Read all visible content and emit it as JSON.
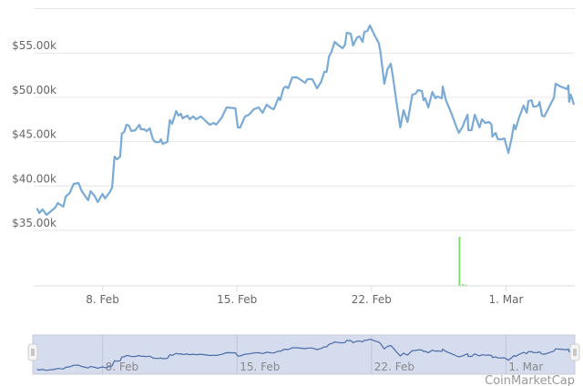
{
  "chart_data": {
    "type": "line",
    "title": "",
    "xlabel": "",
    "ylabel": "",
    "xlim": [
      "2021-02-04T10",
      "2021-03-04T14"
    ],
    "ylim": [
      29000,
      60000
    ],
    "grid": true,
    "legend": "none",
    "y_ticks": [
      {
        "value": 35000,
        "label": "$35.00k"
      },
      {
        "value": 40000,
        "label": "$40.00k"
      },
      {
        "value": 45000,
        "label": "$45.00k"
      },
      {
        "value": 50000,
        "label": "$50.00k"
      },
      {
        "value": 55000,
        "label": "$55.00k"
      }
    ],
    "x_ticks": [
      {
        "value": "2021-02-08T00",
        "label": "8. Feb"
      },
      {
        "value": "2021-02-15T00",
        "label": "15. Feb"
      },
      {
        "value": "2021-02-22T00",
        "label": "22. Feb"
      },
      {
        "value": "2021-03-01T00",
        "label": "1. Mar"
      }
    ],
    "colors": {
      "price": "#7aaad6",
      "volume": "#7ee06a",
      "navigator_fill": "#d5dcee",
      "navigator_line": "#4a6aa8"
    },
    "price": [
      [
        "2021-02-04T14",
        37500
      ],
      [
        "2021-02-04T17",
        36950
      ],
      [
        "2021-02-04T21",
        37360
      ],
      [
        "2021-02-05T02",
        36750
      ],
      [
        "2021-02-05T13",
        37570
      ],
      [
        "2021-02-05T16",
        38080
      ],
      [
        "2021-02-05T23",
        37670
      ],
      [
        "2021-02-06T02",
        38800
      ],
      [
        "2021-02-06T07",
        39210
      ],
      [
        "2021-02-06T12",
        40240
      ],
      [
        "2021-02-06T18",
        40340
      ],
      [
        "2021-02-06T22",
        39420
      ],
      [
        "2021-02-07T06",
        38390
      ],
      [
        "2021-02-07T09",
        39420
      ],
      [
        "2021-02-07T14",
        38900
      ],
      [
        "2021-02-07T18",
        38180
      ],
      [
        "2021-02-08T00",
        39110
      ],
      [
        "2021-02-08T03",
        38590
      ],
      [
        "2021-02-08T09",
        39310
      ],
      [
        "2021-02-08T12",
        39830
      ],
      [
        "2021-02-08T15",
        43320
      ],
      [
        "2021-02-08T18",
        43010
      ],
      [
        "2021-02-08T22",
        43320
      ],
      [
        "2021-02-09T00",
        45880
      ],
      [
        "2021-02-09T03",
        46090
      ],
      [
        "2021-02-09T06",
        46910
      ],
      [
        "2021-02-09T09",
        46810
      ],
      [
        "2021-02-09T12",
        46190
      ],
      [
        "2021-02-09T17",
        46290
      ],
      [
        "2021-02-09T22",
        46910
      ],
      [
        "2021-02-10T00",
        46400
      ],
      [
        "2021-02-10T04",
        46400
      ],
      [
        "2021-02-10T07",
        46190
      ],
      [
        "2021-02-10T11",
        46500
      ],
      [
        "2021-02-10T15",
        45270
      ],
      [
        "2021-02-10T18",
        44960
      ],
      [
        "2021-02-10T23",
        44960
      ],
      [
        "2021-02-11T01",
        45270
      ],
      [
        "2021-02-11T03",
        44750
      ],
      [
        "2021-02-11T09",
        44960
      ],
      [
        "2021-02-11T12",
        47420
      ],
      [
        "2021-02-11T15",
        47010
      ],
      [
        "2021-02-11T20",
        48450
      ],
      [
        "2021-02-11T23",
        47940
      ],
      [
        "2021-02-12T02",
        48140
      ],
      [
        "2021-02-12T04",
        47630
      ],
      [
        "2021-02-12T10",
        47940
      ],
      [
        "2021-02-12T13",
        47530
      ],
      [
        "2021-02-12T17",
        47840
      ],
      [
        "2021-02-12T21",
        47530
      ],
      [
        "2021-02-13T03",
        47840
      ],
      [
        "2021-02-13T09",
        47320
      ],
      [
        "2021-02-13T14",
        46910
      ],
      [
        "2021-02-13T19",
        47120
      ],
      [
        "2021-02-13T22",
        46910
      ],
      [
        "2021-02-14T05",
        47730
      ],
      [
        "2021-02-14T11",
        48860
      ],
      [
        "2021-02-14T22",
        48760
      ],
      [
        "2021-02-15T01",
        46600
      ],
      [
        "2021-02-15T04",
        46600
      ],
      [
        "2021-02-15T10",
        47840
      ],
      [
        "2021-02-15T15",
        48040
      ],
      [
        "2021-02-15T21",
        48660
      ],
      [
        "2021-02-16T03",
        48860
      ],
      [
        "2021-02-16T08",
        48250
      ],
      [
        "2021-02-16T13",
        49170
      ],
      [
        "2021-02-16T19",
        48760
      ],
      [
        "2021-02-16T22",
        48660
      ],
      [
        "2021-02-17T04",
        49990
      ],
      [
        "2021-02-17T06",
        49680
      ],
      [
        "2021-02-17T10",
        51020
      ],
      [
        "2021-02-17T13",
        51220
      ],
      [
        "2021-02-17T16",
        51020
      ],
      [
        "2021-02-17T21",
        52250
      ],
      [
        "2021-02-18T03",
        52250
      ],
      [
        "2021-02-18T08",
        51940
      ],
      [
        "2021-02-18T13",
        51630
      ],
      [
        "2021-02-18T16",
        52040
      ],
      [
        "2021-02-18T22",
        52040
      ],
      [
        "2021-02-19T04",
        51020
      ],
      [
        "2021-02-19T09",
        51740
      ],
      [
        "2021-02-19T13",
        52870
      ],
      [
        "2021-02-19T16",
        52870
      ],
      [
        "2021-02-19T19",
        54610
      ],
      [
        "2021-02-19T22",
        55130
      ],
      [
        "2021-02-20T02",
        56250
      ],
      [
        "2021-02-20T07",
        55840
      ],
      [
        "2021-02-20T12",
        55540
      ],
      [
        "2021-02-20T15",
        55950
      ],
      [
        "2021-02-20T17",
        57280
      ],
      [
        "2021-02-20T22",
        57180
      ],
      [
        "2021-02-21T01",
        55840
      ],
      [
        "2021-02-21T06",
        56770
      ],
      [
        "2021-02-21T09",
        56870
      ],
      [
        "2021-02-21T13",
        56250
      ],
      [
        "2021-02-21T15",
        57380
      ],
      [
        "2021-02-21T19",
        57490
      ],
      [
        "2021-02-21T22",
        58100
      ],
      [
        "2021-02-22T04",
        56970
      ],
      [
        "2021-02-22T09",
        56150
      ],
      [
        "2021-02-22T11",
        55230
      ],
      [
        "2021-02-22T16",
        51530
      ],
      [
        "2021-02-22T20",
        53170
      ],
      [
        "2021-02-23T00",
        53790
      ],
      [
        "2021-02-23T02",
        52760
      ],
      [
        "2021-02-23T07",
        49580
      ],
      [
        "2021-02-23T12",
        46600
      ],
      [
        "2021-02-23T16",
        48550
      ],
      [
        "2021-02-23T21",
        47220
      ],
      [
        "2021-02-24T03",
        50300
      ],
      [
        "2021-02-24T07",
        50400
      ],
      [
        "2021-02-24T10",
        50810
      ],
      [
        "2021-02-24T15",
        50710
      ],
      [
        "2021-02-24T17",
        49680
      ],
      [
        "2021-02-24T19",
        49890
      ],
      [
        "2021-02-24T23",
        48860
      ],
      [
        "2021-02-25T04",
        50610
      ],
      [
        "2021-02-25T08",
        49890
      ],
      [
        "2021-02-25T10",
        50090
      ],
      [
        "2021-02-25T16",
        49890
      ],
      [
        "2021-02-25T17",
        51220
      ],
      [
        "2021-02-25T21",
        49680
      ],
      [
        "2021-02-26T04",
        48140
      ],
      [
        "2021-02-26T09",
        46910
      ],
      [
        "2021-02-26T13",
        45990
      ],
      [
        "2021-02-26T18",
        46710
      ],
      [
        "2021-02-26T20",
        47220
      ],
      [
        "2021-02-27T00",
        48040
      ],
      [
        "2021-02-27T01",
        46290
      ],
      [
        "2021-02-27T05",
        46290
      ],
      [
        "2021-02-27T09",
        48040
      ],
      [
        "2021-02-27T12",
        47320
      ],
      [
        "2021-02-27T15",
        46600
      ],
      [
        "2021-02-27T18",
        47530
      ],
      [
        "2021-02-27T22",
        47120
      ],
      [
        "2021-02-28T03",
        47220
      ],
      [
        "2021-02-28T06",
        46910
      ],
      [
        "2021-02-28T07",
        45580
      ],
      [
        "2021-02-28T11",
        45990
      ],
      [
        "2021-02-28T14",
        45270
      ],
      [
        "2021-02-28T19",
        45270
      ],
      [
        "2021-02-28T22",
        45370
      ],
      [
        "2021-03-01T03",
        43730
      ],
      [
        "2021-03-01T07",
        45370
      ],
      [
        "2021-03-01T10",
        46910
      ],
      [
        "2021-03-01T12",
        46400
      ],
      [
        "2021-03-01T16",
        47630
      ],
      [
        "2021-03-01T22",
        49070
      ],
      [
        "2021-03-02T02",
        48250
      ],
      [
        "2021-03-02T04",
        49580
      ],
      [
        "2021-03-02T08",
        49680
      ],
      [
        "2021-03-02T10",
        48960
      ],
      [
        "2021-03-02T13",
        48960
      ],
      [
        "2021-03-02T16",
        49070
      ],
      [
        "2021-03-02T18",
        49480
      ],
      [
        "2021-03-02T21",
        47940
      ],
      [
        "2021-03-03T00",
        47840
      ],
      [
        "2021-03-03T08",
        49270
      ],
      [
        "2021-03-03T12",
        49990
      ],
      [
        "2021-03-03T14",
        51530
      ],
      [
        "2021-03-03T20",
        51220
      ],
      [
        "2021-03-04T02",
        51020
      ],
      [
        "2021-03-04T04",
        50920
      ],
      [
        "2021-03-04T06",
        51330
      ],
      [
        "2021-03-04T07",
        49480
      ],
      [
        "2021-03-04T09",
        50300
      ],
      [
        "2021-03-04T13",
        49170
      ]
    ],
    "volume": [
      [
        "2021-02-26T14",
        100
      ],
      [
        "2021-02-26T18",
        3
      ],
      [
        "2021-02-26T22",
        2
      ]
    ]
  },
  "navigator": {
    "x_ticks": [
      "8. Feb",
      "15. Feb",
      "22. Feb",
      "1. Mar"
    ],
    "watermark": "CoinMarketCap"
  }
}
